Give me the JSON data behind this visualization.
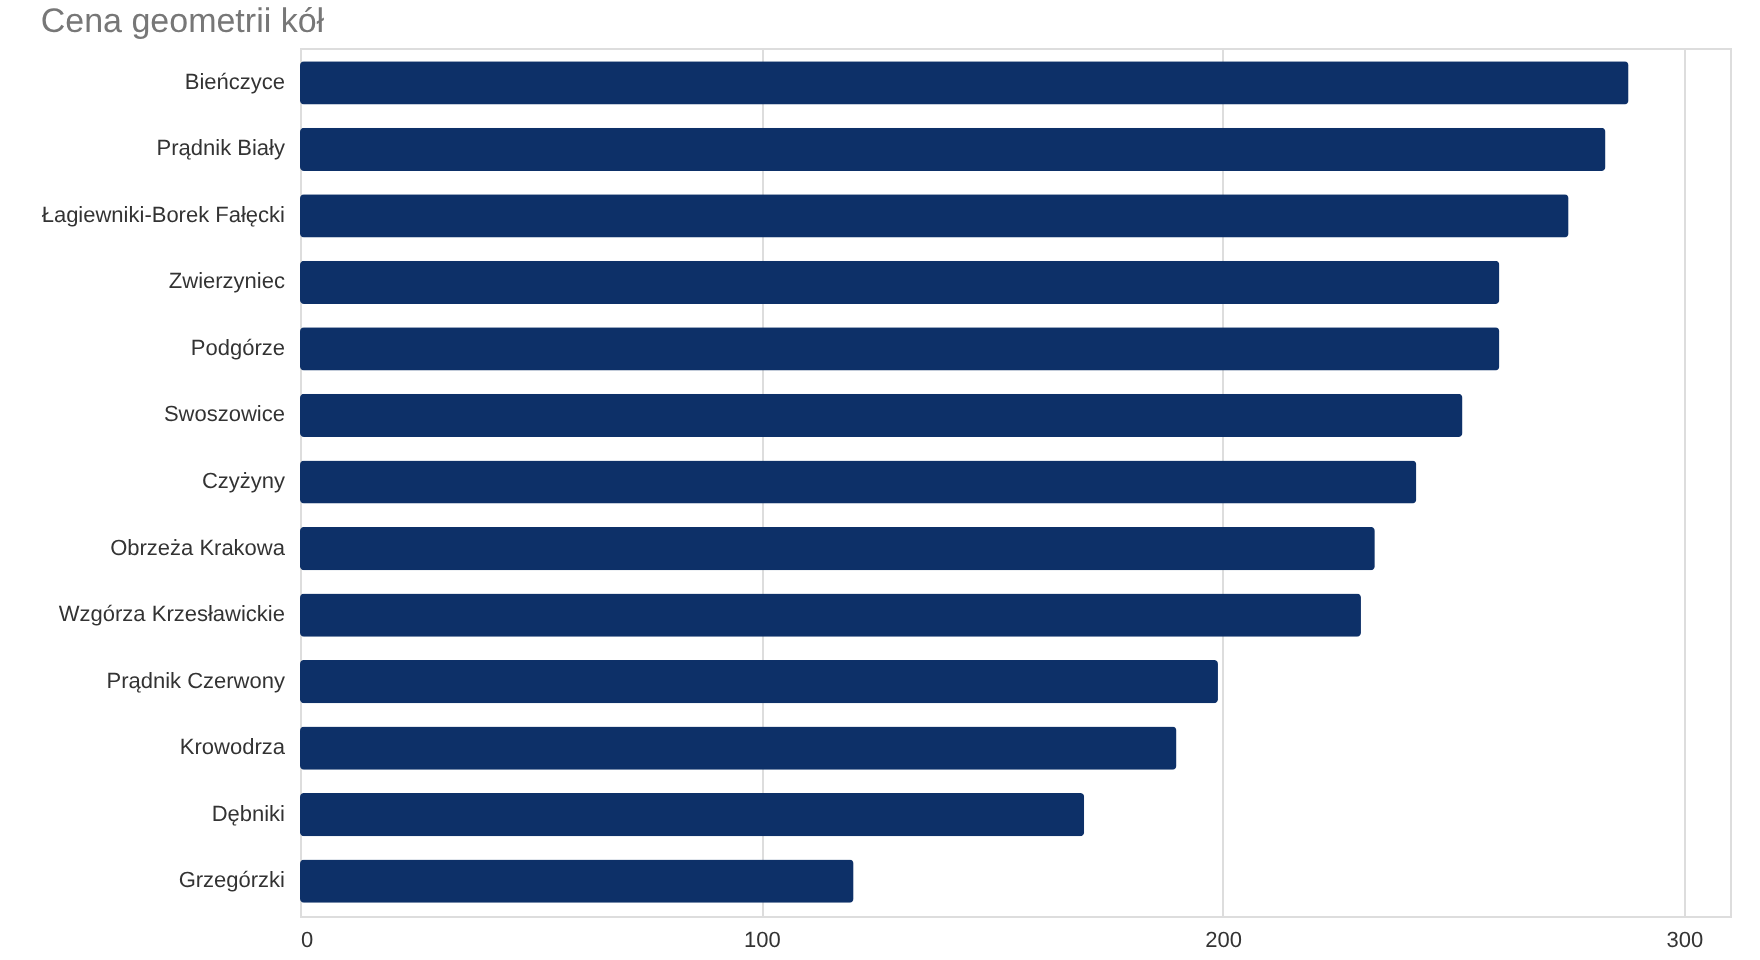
{
  "chart_data": {
    "type": "bar",
    "orientation": "horizontal",
    "title": "Cena geometrii kół",
    "categories": [
      "Bieńczyce",
      "Prądnik Biały",
      "Łagiewniki-Borek Fałęcki",
      "Zwierzyniec",
      "Podgórze",
      "Swoszowice",
      "Czyżyny",
      "Obrzeża Krakowa",
      "Wzgórza Krzesławickie",
      "Prądnik Czerwony",
      "Krowodrza",
      "Dębniki",
      "Grzegórzki"
    ],
    "values": [
      288,
      283,
      275,
      260,
      260,
      252,
      242,
      233,
      230,
      199,
      190,
      170,
      120
    ],
    "color": "#0d3068",
    "xlim": [
      0,
      310
    ],
    "xticks": [
      0,
      100,
      200,
      300
    ],
    "grid": "x"
  }
}
